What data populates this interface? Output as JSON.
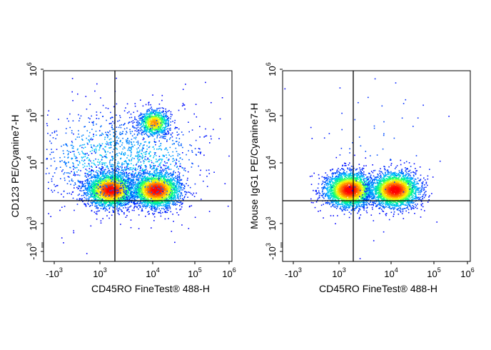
{
  "chart_data": [
    {
      "type": "scatter",
      "subtype": "flow-cytometry-density-plot",
      "xlabel": "CD45RO FineTest® 488-H",
      "ylabel": "CD123 PE/Cyanine7-H",
      "x_scale": "biexponential",
      "y_scale": "biexponential",
      "xlim": [
        -2000,
        1000000
      ],
      "ylim": [
        -2000,
        1000000
      ],
      "x_ticks": [
        {
          "value": -1000,
          "base": "-10",
          "exp": "3"
        },
        {
          "value": 1000,
          "base": "10",
          "exp": "3"
        },
        {
          "value": 10000,
          "base": "10",
          "exp": "4"
        },
        {
          "value": 100000,
          "base": "10",
          "exp": "5"
        },
        {
          "value": 1000000,
          "base": "10",
          "exp": "6"
        }
      ],
      "y_ticks": [
        {
          "value": -1000,
          "base": "-10",
          "exp": "3"
        },
        {
          "value": 1000,
          "base": "10",
          "exp": "3"
        },
        {
          "value": 10000,
          "base": "10",
          "exp": "4"
        },
        {
          "value": 100000,
          "base": "10",
          "exp": "5"
        },
        {
          "value": 1000000,
          "base": "10",
          "exp": "6"
        }
      ],
      "quadrant_gate": {
        "x": 1800,
        "y": 2000
      },
      "populations": [
        {
          "x": 600,
          "y": 700,
          "density": "high"
        },
        {
          "x": 8000,
          "y": 700,
          "density": "high"
        },
        {
          "x": 7000,
          "y": 35000,
          "density": "medium"
        },
        {
          "x": 300,
          "y": 4000,
          "density": "low"
        },
        {
          "x": 4000,
          "y": 3000,
          "density": "low"
        }
      ],
      "grid": false,
      "legend": "none",
      "colormap": [
        "#0000ff",
        "#00c0ff",
        "#00ff80",
        "#ffff00",
        "#ff8000",
        "#ff0000"
      ]
    },
    {
      "type": "scatter",
      "subtype": "flow-cytometry-density-plot",
      "xlabel": "CD45RO FineTest® 488-H",
      "ylabel": "Mouse IgG1 PE/Cyanine7-H",
      "x_scale": "biexponential",
      "y_scale": "biexponential",
      "xlim": [
        -2000,
        1000000
      ],
      "ylim": [
        -2000,
        1000000
      ],
      "x_ticks": [
        {
          "value": -1000,
          "base": "-10",
          "exp": "3"
        },
        {
          "value": 1000,
          "base": "10",
          "exp": "3"
        },
        {
          "value": 10000,
          "base": "10",
          "exp": "4"
        },
        {
          "value": 100000,
          "base": "10",
          "exp": "5"
        },
        {
          "value": 1000000,
          "base": "10",
          "exp": "6"
        }
      ],
      "y_ticks": [
        {
          "value": -1000,
          "base": "-10",
          "exp": "3"
        },
        {
          "value": 1000,
          "base": "10",
          "exp": "3"
        },
        {
          "value": 10000,
          "base": "10",
          "exp": "4"
        },
        {
          "value": 100000,
          "base": "10",
          "exp": "5"
        },
        {
          "value": 1000000,
          "base": "10",
          "exp": "6"
        }
      ],
      "quadrant_gate": {
        "x": 1800,
        "y": 2000
      },
      "populations": [
        {
          "x": 600,
          "y": 700,
          "density": "high"
        },
        {
          "x": 8000,
          "y": 700,
          "density": "high"
        },
        {
          "x": 3000,
          "y": 8000,
          "density": "sparse"
        }
      ],
      "grid": false,
      "legend": "none",
      "colormap": [
        "#0000ff",
        "#00c0ff",
        "#00ff80",
        "#ffff00",
        "#ff8000",
        "#ff0000"
      ]
    }
  ]
}
